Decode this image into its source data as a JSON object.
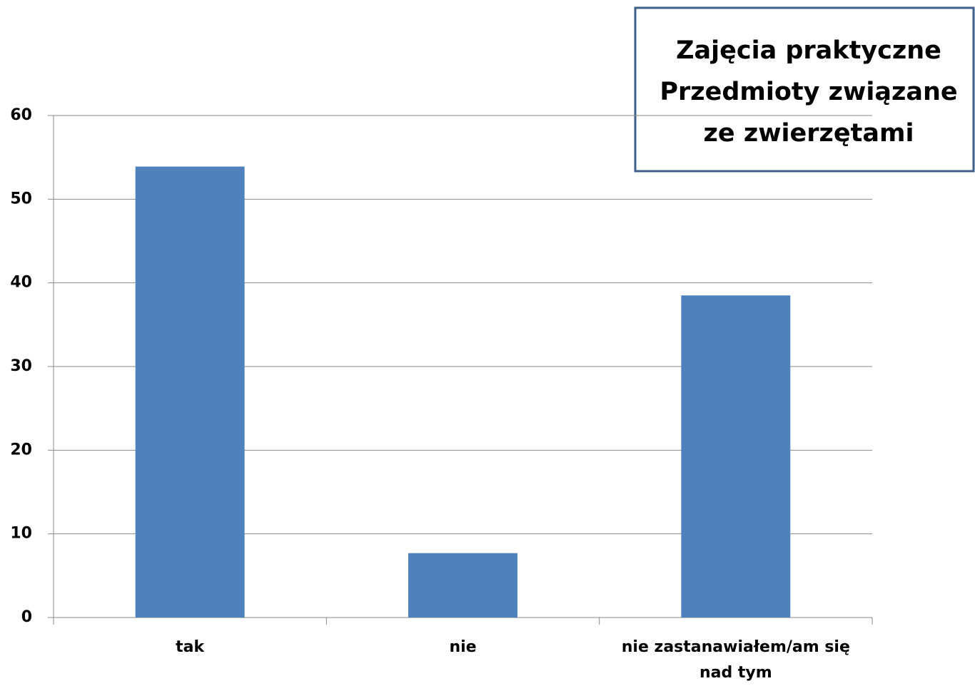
{
  "chart_data": {
    "type": "bar",
    "title_lines": [
      "Zajęcia praktyczne",
      "Przedmioty związane",
      "ze zwierzętami"
    ],
    "categories": [
      "tak",
      "nie",
      "nie zastanawiałem/am się nad tym"
    ],
    "values": [
      53.9,
      7.7,
      38.5
    ],
    "color": "#4f81bd",
    "ylim": [
      0,
      60
    ],
    "yticks": [
      0,
      10,
      20,
      30,
      40,
      50,
      60
    ],
    "grid": true
  }
}
